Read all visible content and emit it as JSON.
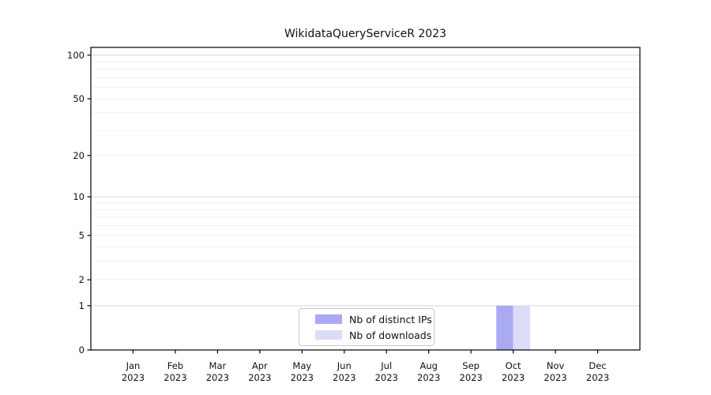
{
  "title": "WikidataQueryServiceR 2023",
  "legend": {
    "items": [
      {
        "label": "Nb of distinct IPs",
        "color": "#a9aaf2"
      },
      {
        "label": "Nb of downloads",
        "color": "#dcdcf8"
      }
    ]
  },
  "chart_data": {
    "type": "bar",
    "title": "WikidataQueryServiceR 2023",
    "categories": [
      "Jan 2023",
      "Feb 2023",
      "Mar 2023",
      "Apr 2023",
      "May 2023",
      "Jun 2023",
      "Jul 2023",
      "Aug 2023",
      "Sep 2023",
      "Oct 2023",
      "Nov 2023",
      "Dec 2023"
    ],
    "series": [
      {
        "name": "Nb of distinct IPs",
        "color": "#a9aaf2",
        "values": [
          0,
          0,
          0,
          0,
          0,
          0,
          0,
          0,
          0,
          1,
          0,
          0
        ]
      },
      {
        "name": "Nb of downloads",
        "color": "#dcdcf8",
        "values": [
          0,
          0,
          0,
          0,
          0,
          0,
          0,
          0,
          0,
          1,
          0,
          0
        ]
      }
    ],
    "xlabel": "",
    "ylabel": "",
    "yscale": "log1p",
    "yticks": [
      0,
      1,
      2,
      5,
      10,
      20,
      50,
      100
    ],
    "ylim": [
      0,
      113
    ],
    "grid": "horizontal",
    "grid_major_values": [
      1,
      10,
      100
    ],
    "grid_minor_values": [
      2,
      3,
      4,
      5,
      6,
      7,
      8,
      9,
      20,
      30,
      40,
      50,
      60,
      70,
      80,
      90
    ],
    "legend_position": "lower-center-inside",
    "colors": {
      "spine": "#000000",
      "grid_major": "#d6d6d6",
      "grid_minor": "#f1f1f1",
      "text": "#111111"
    }
  }
}
